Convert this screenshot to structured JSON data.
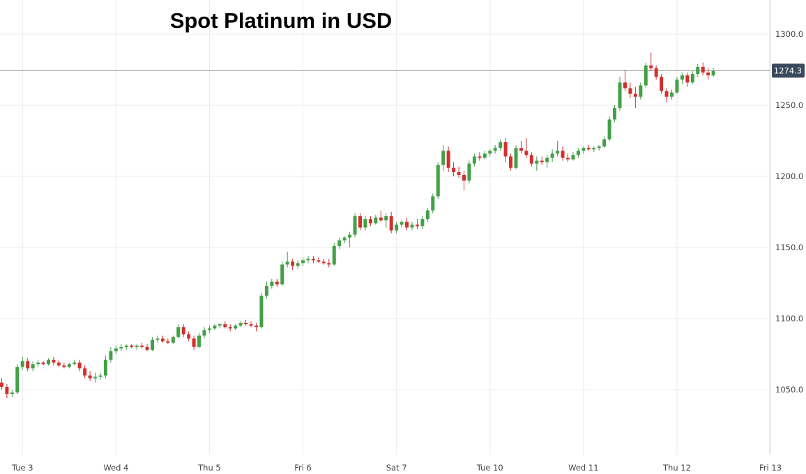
{
  "chart_data": {
    "type": "candlestick",
    "title": "Spot Platinum in USD",
    "xlabel": "",
    "ylabel": "",
    "ylim": [
      1010,
      1310
    ],
    "y_ticks": [
      "1050.0",
      "1100.0",
      "1150.0",
      "1200.0",
      "1250.0",
      "1300.0"
    ],
    "y_tick_values": [
      1050,
      1100,
      1150,
      1200,
      1250,
      1300
    ],
    "x_ticks": [
      "Tue 3",
      "Wed 4",
      "Thu 5",
      "Fri 6",
      "Sat 7",
      "Tue 10",
      "Wed 11",
      "Thu 12",
      "Fri 13"
    ],
    "x_tick_slots": [
      5,
      23,
      41,
      59,
      77,
      95,
      113,
      131,
      149
    ],
    "current_price": "1274.3",
    "current_price_value": 1274.3,
    "grid": true,
    "colors": {
      "up": "#43a047",
      "down": "#d32f2f",
      "grid": "#ebebeb",
      "price_line": "#999999",
      "price_label_bg": "#3a4a5c"
    },
    "candles": [
      [
        1059,
        1063,
        1052,
        1055
      ],
      [
        1055,
        1058,
        1050,
        1052
      ],
      [
        1052,
        1054,
        1044,
        1047
      ],
      [
        1047,
        1050,
        1045,
        1048
      ],
      [
        1048,
        1068,
        1047,
        1066
      ],
      [
        1066,
        1073,
        1064,
        1070
      ],
      [
        1070,
        1072,
        1063,
        1065
      ],
      [
        1065,
        1070,
        1063,
        1068
      ],
      [
        1068,
        1071,
        1066,
        1069
      ],
      [
        1069,
        1070,
        1067,
        1068
      ],
      [
        1068,
        1072,
        1067,
        1071
      ],
      [
        1071,
        1073,
        1067,
        1069
      ],
      [
        1069,
        1071,
        1066,
        1067
      ],
      [
        1067,
        1069,
        1065,
        1066
      ],
      [
        1066,
        1069,
        1065,
        1068
      ],
      [
        1068,
        1071,
        1067,
        1069
      ],
      [
        1069,
        1071,
        1063,
        1065
      ],
      [
        1065,
        1067,
        1058,
        1060
      ],
      [
        1060,
        1063,
        1056,
        1058
      ],
      [
        1058,
        1062,
        1055,
        1059
      ],
      [
        1059,
        1062,
        1057,
        1060
      ],
      [
        1060,
        1074,
        1058,
        1071
      ],
      [
        1071,
        1080,
        1069,
        1077
      ],
      [
        1077,
        1081,
        1075,
        1079
      ],
      [
        1079,
        1082,
        1077,
        1080
      ],
      [
        1080,
        1082,
        1078,
        1081
      ],
      [
        1081,
        1082,
        1079,
        1080
      ],
      [
        1080,
        1082,
        1078,
        1081
      ],
      [
        1081,
        1083,
        1079,
        1080
      ],
      [
        1080,
        1082,
        1077,
        1078
      ],
      [
        1078,
        1087,
        1077,
        1085
      ],
      [
        1085,
        1088,
        1083,
        1086
      ],
      [
        1086,
        1088,
        1083,
        1084
      ],
      [
        1084,
        1086,
        1082,
        1083
      ],
      [
        1083,
        1088,
        1082,
        1087
      ],
      [
        1087,
        1096,
        1086,
        1094
      ],
      [
        1094,
        1096,
        1087,
        1089
      ],
      [
        1089,
        1091,
        1084,
        1086
      ],
      [
        1086,
        1088,
        1078,
        1080
      ],
      [
        1080,
        1090,
        1079,
        1088
      ],
      [
        1088,
        1094,
        1086,
        1092
      ],
      [
        1092,
        1095,
        1090,
        1093
      ],
      [
        1093,
        1096,
        1092,
        1095
      ],
      [
        1095,
        1097,
        1093,
        1096
      ],
      [
        1096,
        1098,
        1093,
        1094
      ],
      [
        1094,
        1096,
        1091,
        1093
      ],
      [
        1093,
        1096,
        1092,
        1095
      ],
      [
        1095,
        1098,
        1094,
        1097
      ],
      [
        1097,
        1099,
        1095,
        1096
      ],
      [
        1096,
        1098,
        1094,
        1095
      ],
      [
        1095,
        1097,
        1091,
        1094
      ],
      [
        1094,
        1118,
        1093,
        1116
      ],
      [
        1116,
        1126,
        1114,
        1123
      ],
      [
        1123,
        1128,
        1121,
        1126
      ],
      [
        1126,
        1128,
        1122,
        1124
      ],
      [
        1124,
        1140,
        1123,
        1138
      ],
      [
        1138,
        1147,
        1136,
        1140
      ],
      [
        1140,
        1142,
        1134,
        1137
      ],
      [
        1137,
        1141,
        1135,
        1139
      ],
      [
        1139,
        1143,
        1137,
        1141
      ],
      [
        1141,
        1144,
        1139,
        1142
      ],
      [
        1142,
        1144,
        1139,
        1141
      ],
      [
        1141,
        1143,
        1139,
        1140
      ],
      [
        1140,
        1142,
        1138,
        1139
      ],
      [
        1139,
        1142,
        1136,
        1138
      ],
      [
        1138,
        1153,
        1137,
        1151
      ],
      [
        1151,
        1157,
        1149,
        1155
      ],
      [
        1155,
        1158,
        1153,
        1157
      ],
      [
        1157,
        1161,
        1150,
        1159
      ],
      [
        1159,
        1174,
        1157,
        1172
      ],
      [
        1172,
        1174,
        1162,
        1164
      ],
      [
        1164,
        1172,
        1162,
        1170
      ],
      [
        1170,
        1172,
        1165,
        1167
      ],
      [
        1167,
        1173,
        1166,
        1171
      ],
      [
        1171,
        1176,
        1168,
        1169
      ],
      [
        1169,
        1174,
        1164,
        1172
      ],
      [
        1172,
        1175,
        1160,
        1162
      ],
      [
        1162,
        1168,
        1160,
        1166
      ],
      [
        1166,
        1169,
        1164,
        1168
      ],
      [
        1168,
        1171,
        1162,
        1164
      ],
      [
        1164,
        1168,
        1162,
        1166
      ],
      [
        1166,
        1170,
        1163,
        1165
      ],
      [
        1165,
        1172,
        1163,
        1170
      ],
      [
        1170,
        1178,
        1168,
        1176
      ],
      [
        1176,
        1188,
        1174,
        1186
      ],
      [
        1186,
        1210,
        1184,
        1208
      ],
      [
        1208,
        1222,
        1204,
        1218
      ],
      [
        1218,
        1221,
        1203,
        1206
      ],
      [
        1206,
        1210,
        1200,
        1203
      ],
      [
        1203,
        1207,
        1199,
        1201
      ],
      [
        1201,
        1204,
        1190,
        1197
      ],
      [
        1197,
        1211,
        1195,
        1209
      ],
      [
        1209,
        1216,
        1207,
        1214
      ],
      [
        1214,
        1217,
        1211,
        1213
      ],
      [
        1213,
        1218,
        1212,
        1216
      ],
      [
        1216,
        1219,
        1214,
        1218
      ],
      [
        1218,
        1222,
        1216,
        1220
      ],
      [
        1220,
        1226,
        1218,
        1224
      ],
      [
        1224,
        1227,
        1210,
        1214
      ],
      [
        1214,
        1216,
        1204,
        1206
      ],
      [
        1206,
        1222,
        1205,
        1220
      ],
      [
        1220,
        1225,
        1216,
        1218
      ],
      [
        1218,
        1227,
        1213,
        1215
      ],
      [
        1215,
        1217,
        1207,
        1209
      ],
      [
        1209,
        1214,
        1204,
        1211
      ],
      [
        1211,
        1214,
        1208,
        1210
      ],
      [
        1210,
        1215,
        1206,
        1213
      ],
      [
        1213,
        1219,
        1210,
        1216
      ],
      [
        1216,
        1225,
        1214,
        1218
      ],
      [
        1218,
        1221,
        1211,
        1213
      ],
      [
        1213,
        1216,
        1210,
        1212
      ],
      [
        1212,
        1217,
        1211,
        1215
      ],
      [
        1215,
        1220,
        1213,
        1218
      ],
      [
        1218,
        1221,
        1216,
        1220
      ],
      [
        1220,
        1222,
        1218,
        1219
      ],
      [
        1219,
        1221,
        1217,
        1220
      ],
      [
        1220,
        1222,
        1218,
        1221
      ],
      [
        1221,
        1228,
        1220,
        1226
      ],
      [
        1226,
        1242,
        1225,
        1240
      ],
      [
        1240,
        1250,
        1238,
        1248
      ],
      [
        1248,
        1270,
        1246,
        1266
      ],
      [
        1266,
        1275,
        1260,
        1262
      ],
      [
        1262,
        1266,
        1255,
        1258
      ],
      [
        1258,
        1263,
        1248,
        1256
      ],
      [
        1256,
        1266,
        1254,
        1264
      ],
      [
        1264,
        1280,
        1262,
        1278
      ],
      [
        1278,
        1287,
        1274,
        1276
      ],
      [
        1276,
        1278,
        1268,
        1270
      ],
      [
        1270,
        1272,
        1258,
        1260
      ],
      [
        1260,
        1262,
        1252,
        1256
      ],
      [
        1256,
        1261,
        1254,
        1259
      ],
      [
        1259,
        1270,
        1258,
        1268
      ],
      [
        1268,
        1273,
        1265,
        1271
      ],
      [
        1271,
        1273,
        1263,
        1266
      ],
      [
        1266,
        1274,
        1265,
        1272
      ],
      [
        1272,
        1279,
        1270,
        1277
      ],
      [
        1277,
        1280,
        1271,
        1273
      ],
      [
        1273,
        1276,
        1268,
        1271
      ],
      [
        1271,
        1276,
        1270,
        1274
      ]
    ]
  }
}
